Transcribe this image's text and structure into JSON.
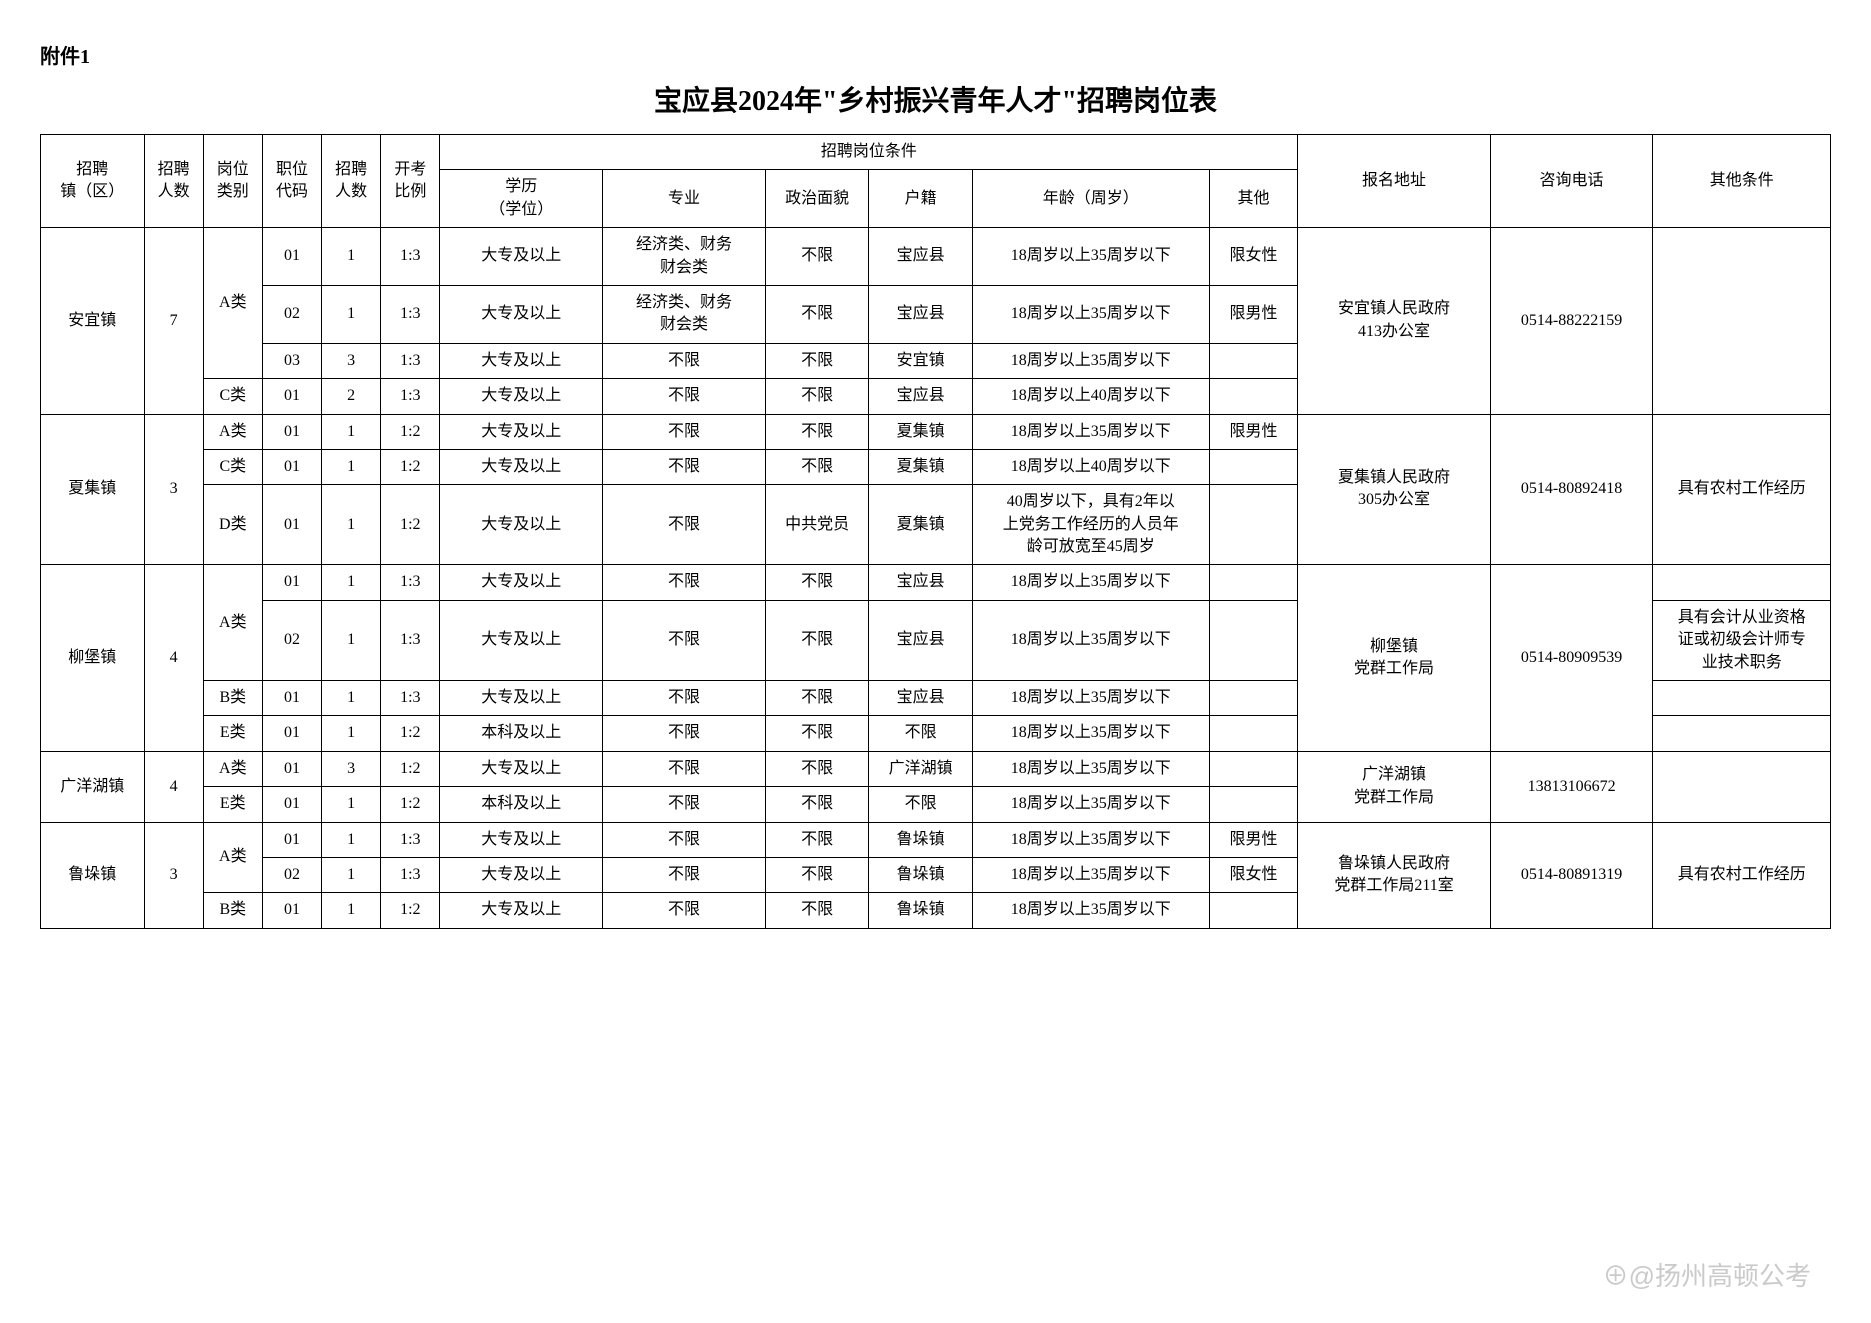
{
  "attachment_label": "附件1",
  "title": "宝应县2024年\"乡村振兴青年人才\"招聘岗位表",
  "headers": {
    "town": "招聘\n镇（区）",
    "total": "招聘\n人数",
    "category": "岗位\n类别",
    "code": "职位\n代码",
    "num": "招聘\n人数",
    "ratio": "开考\n比例",
    "conditions_group": "招聘岗位条件",
    "education": "学历\n（学位）",
    "major": "专业",
    "political": "政治面貌",
    "huji": "户籍",
    "age": "年龄（周岁）",
    "other": "其他",
    "address": "报名地址",
    "tel": "咨询电话",
    "extra": "其他条件"
  },
  "towns": [
    {
      "name": "安宜镇",
      "total": "7",
      "address": "安宜镇人民政府\n413办公室",
      "tel": "0514-88222159",
      "extra": "",
      "rows": [
        {
          "cat": "A类",
          "code": "01",
          "num": "1",
          "ratio": "1:3",
          "edu": "大专及以上",
          "major": "经济类、财务\n财会类",
          "pol": "不限",
          "huji": "宝应县",
          "age": "18周岁以上35周岁以下",
          "other": "限女性",
          "extra": ""
        },
        {
          "cat": "",
          "code": "02",
          "num": "1",
          "ratio": "1:3",
          "edu": "大专及以上",
          "major": "经济类、财务\n财会类",
          "pol": "不限",
          "huji": "宝应县",
          "age": "18周岁以上35周岁以下",
          "other": "限男性",
          "extra": ""
        },
        {
          "cat": "",
          "code": "03",
          "num": "3",
          "ratio": "1:3",
          "edu": "大专及以上",
          "major": "不限",
          "pol": "不限",
          "huji": "安宜镇",
          "age": "18周岁以上35周岁以下",
          "other": "",
          "extra": ""
        },
        {
          "cat": "C类",
          "code": "01",
          "num": "2",
          "ratio": "1:3",
          "edu": "大专及以上",
          "major": "不限",
          "pol": "不限",
          "huji": "宝应县",
          "age": "18周岁以上40周岁以下",
          "other": "",
          "extra": ""
        }
      ],
      "cat_spans": [
        3,
        1
      ]
    },
    {
      "name": "夏集镇",
      "total": "3",
      "address": "夏集镇人民政府\n305办公室",
      "tel": "0514-80892418",
      "extra": "具有农村工作经历",
      "rows": [
        {
          "cat": "A类",
          "code": "01",
          "num": "1",
          "ratio": "1:2",
          "edu": "大专及以上",
          "major": "不限",
          "pol": "不限",
          "huji": "夏集镇",
          "age": "18周岁以上35周岁以下",
          "other": "限男性",
          "extra": ""
        },
        {
          "cat": "C类",
          "code": "01",
          "num": "1",
          "ratio": "1:2",
          "edu": "大专及以上",
          "major": "不限",
          "pol": "不限",
          "huji": "夏集镇",
          "age": "18周岁以上40周岁以下",
          "other": "",
          "extra": ""
        },
        {
          "cat": "D类",
          "code": "01",
          "num": "1",
          "ratio": "1:2",
          "edu": "大专及以上",
          "major": "不限",
          "pol": "中共党员",
          "huji": "夏集镇",
          "age": "40周岁以下，具有2年以\n上党务工作经历的人员年\n龄可放宽至45周岁",
          "other": "",
          "extra": ""
        }
      ],
      "cat_spans": [
        1,
        1,
        1
      ]
    },
    {
      "name": "柳堡镇",
      "total": "4",
      "address": "柳堡镇\n党群工作局",
      "tel": "0514-80909539",
      "rows": [
        {
          "cat": "A类",
          "code": "01",
          "num": "1",
          "ratio": "1:3",
          "edu": "大专及以上",
          "major": "不限",
          "pol": "不限",
          "huji": "宝应县",
          "age": "18周岁以上35周岁以下",
          "other": "",
          "extra": ""
        },
        {
          "cat": "",
          "code": "02",
          "num": "1",
          "ratio": "1:3",
          "edu": "大专及以上",
          "major": "不限",
          "pol": "不限",
          "huji": "宝应县",
          "age": "18周岁以上35周岁以下",
          "other": "",
          "extra": "具有会计从业资格\n证或初级会计师专\n业技术职务"
        },
        {
          "cat": "B类",
          "code": "01",
          "num": "1",
          "ratio": "1:3",
          "edu": "大专及以上",
          "major": "不限",
          "pol": "不限",
          "huji": "宝应县",
          "age": "18周岁以上35周岁以下",
          "other": "",
          "extra": ""
        },
        {
          "cat": "E类",
          "code": "01",
          "num": "1",
          "ratio": "1:2",
          "edu": "本科及以上",
          "major": "不限",
          "pol": "不限",
          "huji": "不限",
          "age": "18周岁以上35周岁以下",
          "other": "",
          "extra": ""
        }
      ],
      "cat_spans": [
        2,
        1,
        1
      ],
      "extra_spans": [
        1,
        1,
        1,
        1
      ]
    },
    {
      "name": "广洋湖镇",
      "total": "4",
      "address": "广洋湖镇\n党群工作局",
      "tel": "13813106672",
      "extra": "",
      "rows": [
        {
          "cat": "A类",
          "code": "01",
          "num": "3",
          "ratio": "1:2",
          "edu": "大专及以上",
          "major": "不限",
          "pol": "不限",
          "huji": "广洋湖镇",
          "age": "18周岁以上35周岁以下",
          "other": "",
          "extra": ""
        },
        {
          "cat": "E类",
          "code": "01",
          "num": "1",
          "ratio": "1:2",
          "edu": "本科及以上",
          "major": "不限",
          "pol": "不限",
          "huji": "不限",
          "age": "18周岁以上35周岁以下",
          "other": "",
          "extra": ""
        }
      ],
      "cat_spans": [
        1,
        1
      ]
    },
    {
      "name": "鲁垛镇",
      "total": "3",
      "address": "鲁垛镇人民政府\n党群工作局211室",
      "tel": "0514-80891319",
      "extra": "具有农村工作经历",
      "rows": [
        {
          "cat": "A类",
          "code": "01",
          "num": "1",
          "ratio": "1:3",
          "edu": "大专及以上",
          "major": "不限",
          "pol": "不限",
          "huji": "鲁垛镇",
          "age": "18周岁以上35周岁以下",
          "other": "限男性",
          "extra": ""
        },
        {
          "cat": "",
          "code": "02",
          "num": "1",
          "ratio": "1:3",
          "edu": "大专及以上",
          "major": "不限",
          "pol": "不限",
          "huji": "鲁垛镇",
          "age": "18周岁以上35周岁以下",
          "other": "限女性",
          "extra": ""
        },
        {
          "cat": "B类",
          "code": "01",
          "num": "1",
          "ratio": "1:2",
          "edu": "大专及以上",
          "major": "不限",
          "pol": "不限",
          "huji": "鲁垛镇",
          "age": "18周岁以上35周岁以下",
          "other": "",
          "extra": ""
        }
      ],
      "cat_spans": [
        2,
        1
      ]
    }
  ],
  "watermark": "⊕@扬州高顿公考"
}
